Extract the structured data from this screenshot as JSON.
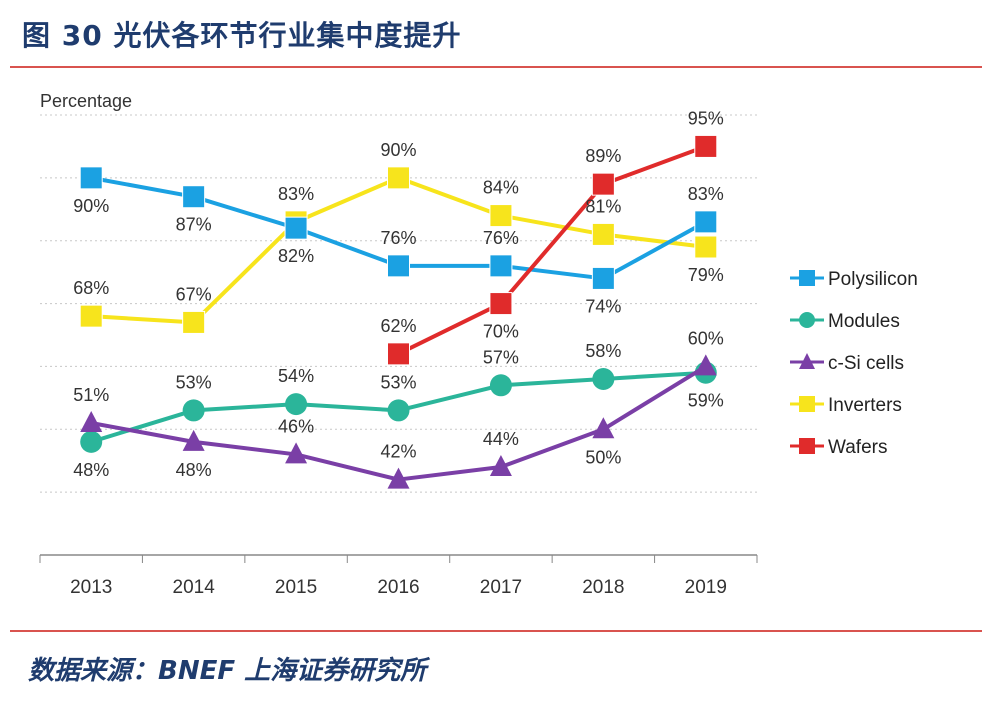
{
  "header": {
    "title": "图 30  光伏各环节行业集中度提升"
  },
  "footer": {
    "source": "数据来源：BNEF  上海证券研究所"
  },
  "colors": {
    "Polysilicon": "#1ba1e2",
    "Modules": "#2bb59a",
    "c-Si cells": "#7a3fa6",
    "Inverters": "#f7e41c",
    "Wafers": "#e02b2b",
    "rule": "#d9534f",
    "title": "#1f3c6e"
  },
  "chart_data": {
    "type": "line",
    "ylabel": "Percentage",
    "xlabel": "",
    "categories": [
      "2013",
      "2014",
      "2015",
      "2016",
      "2017",
      "2018",
      "2019"
    ],
    "ylim": [
      30,
      100
    ],
    "grid": true,
    "legend": "right",
    "series": [
      {
        "name": "Polysilicon",
        "marker": "square",
        "values": [
          90,
          87,
          82,
          76,
          76,
          74,
          83
        ]
      },
      {
        "name": "Modules",
        "marker": "circle",
        "values": [
          48,
          53,
          54,
          53,
          57,
          58,
          59
        ]
      },
      {
        "name": "c-Si cells",
        "marker": "triangle",
        "values": [
          51,
          48,
          46,
          42,
          44,
          50,
          60
        ]
      },
      {
        "name": "Inverters",
        "marker": "square",
        "values": [
          68,
          67,
          83,
          90,
          84,
          81,
          79
        ]
      },
      {
        "name": "Wafers",
        "marker": "square",
        "values": [
          null,
          null,
          null,
          62,
          70,
          89,
          95
        ]
      }
    ],
    "labels": [
      {
        "text": "90%",
        "series": "Polysilicon",
        "i": 0,
        "pos": "below"
      },
      {
        "text": "87%",
        "series": "Polysilicon",
        "i": 1,
        "pos": "below"
      },
      {
        "text": "82%",
        "series": "Polysilicon",
        "i": 2,
        "pos": "below"
      },
      {
        "text": "76%",
        "series": "Polysilicon",
        "i": 3,
        "pos": "above"
      },
      {
        "text": "76%",
        "series": "Polysilicon",
        "i": 4,
        "pos": "above"
      },
      {
        "text": "74%",
        "series": "Polysilicon",
        "i": 5,
        "pos": "below"
      },
      {
        "text": "83%",
        "series": "Polysilicon",
        "i": 6,
        "pos": "above"
      },
      {
        "text": "48%",
        "series": "Modules",
        "i": 0,
        "pos": "below"
      },
      {
        "text": "53%",
        "series": "Modules",
        "i": 1,
        "pos": "above"
      },
      {
        "text": "54%",
        "series": "Modules",
        "i": 2,
        "pos": "above"
      },
      {
        "text": "53%",
        "series": "Modules",
        "i": 3,
        "pos": "above"
      },
      {
        "text": "57%",
        "series": "Modules",
        "i": 4,
        "pos": "above"
      },
      {
        "text": "58%",
        "series": "Modules",
        "i": 5,
        "pos": "above"
      },
      {
        "text": "59%",
        "series": "Modules",
        "i": 6,
        "pos": "below"
      },
      {
        "text": "51%",
        "series": "c-Si cells",
        "i": 0,
        "pos": "above"
      },
      {
        "text": "48%",
        "series": "c-Si cells",
        "i": 1,
        "pos": "below"
      },
      {
        "text": "46%",
        "series": "c-Si cells",
        "i": 2,
        "pos": "above"
      },
      {
        "text": "42%",
        "series": "c-Si cells",
        "i": 3,
        "pos": "above"
      },
      {
        "text": "44%",
        "series": "c-Si cells",
        "i": 4,
        "pos": "above"
      },
      {
        "text": "50%",
        "series": "c-Si cells",
        "i": 5,
        "pos": "below"
      },
      {
        "text": "60%",
        "series": "c-Si cells",
        "i": 6,
        "pos": "above"
      },
      {
        "text": "68%",
        "series": "Inverters",
        "i": 0,
        "pos": "above"
      },
      {
        "text": "67%",
        "series": "Inverters",
        "i": 1,
        "pos": "above"
      },
      {
        "text": "83%",
        "series": "Inverters",
        "i": 2,
        "pos": "above"
      },
      {
        "text": "90%",
        "series": "Inverters",
        "i": 3,
        "pos": "above"
      },
      {
        "text": "84%",
        "series": "Inverters",
        "i": 4,
        "pos": "above"
      },
      {
        "text": "81%",
        "series": "Inverters",
        "i": 5,
        "pos": "above"
      },
      {
        "text": "79%",
        "series": "Inverters",
        "i": 6,
        "pos": "below"
      },
      {
        "text": "62%",
        "series": "Wafers",
        "i": 3,
        "pos": "above"
      },
      {
        "text": "70%",
        "series": "Wafers",
        "i": 4,
        "pos": "below"
      },
      {
        "text": "89%",
        "series": "Wafers",
        "i": 5,
        "pos": "above"
      },
      {
        "text": "95%",
        "series": "Wafers",
        "i": 6,
        "pos": "above"
      }
    ]
  }
}
